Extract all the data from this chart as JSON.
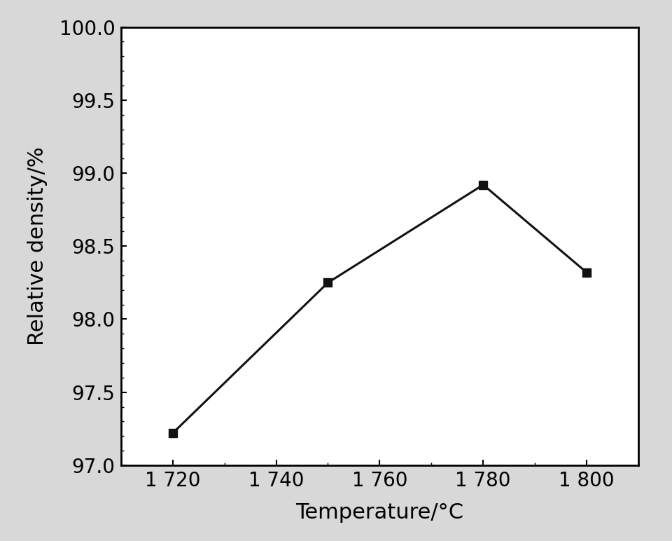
{
  "x": [
    1720,
    1750,
    1780,
    1800
  ],
  "y": [
    97.22,
    98.25,
    98.92,
    98.32
  ],
  "xlim": [
    1710,
    1810
  ],
  "ylim": [
    97.0,
    100.0
  ],
  "xticks": [
    1720,
    1740,
    1760,
    1780,
    1800
  ],
  "yticks": [
    97.0,
    97.5,
    98.0,
    98.5,
    99.0,
    99.5,
    100.0
  ],
  "xlabel": "Temperature/°C",
  "ylabel": "Relative density/%",
  "line_color": "#111111",
  "marker": "s",
  "marker_size": 8,
  "marker_color": "#111111",
  "line_width": 2.2,
  "xlabel_fontsize": 22,
  "ylabel_fontsize": 22,
  "tick_fontsize": 20,
  "figure_facecolor": "#d8d8d8",
  "axes_facecolor": "#ffffff"
}
